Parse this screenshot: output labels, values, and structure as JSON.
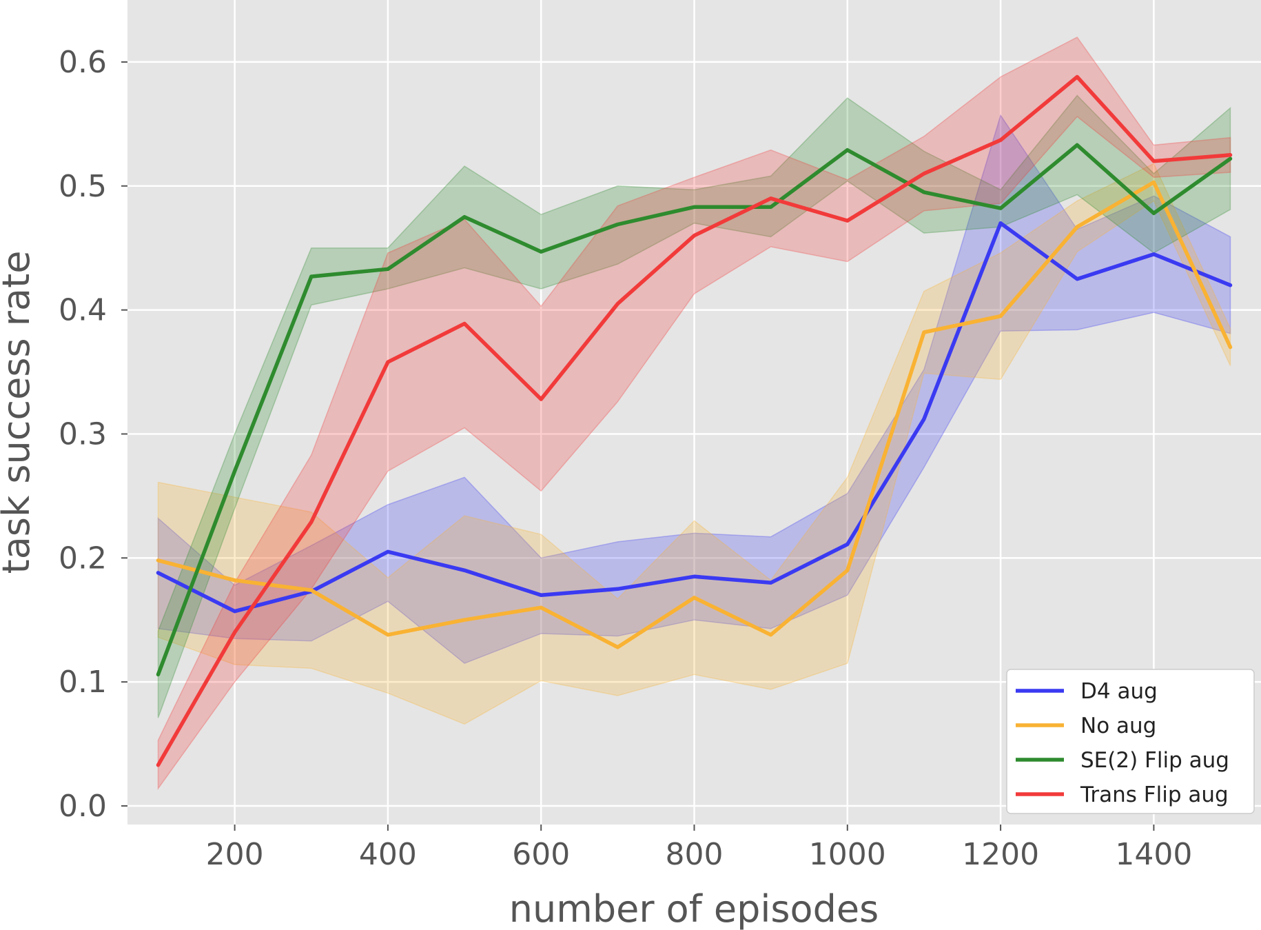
{
  "chart_data": {
    "type": "line",
    "title": "",
    "xlabel": "number of episodes",
    "ylabel": "task success rate",
    "xlim": [
      60,
      1540
    ],
    "ylim": [
      -0.015,
      0.65
    ],
    "xticks": [
      200,
      400,
      600,
      800,
      1000,
      1200,
      1400
    ],
    "yticks": [
      0.0,
      0.1,
      0.2,
      0.3,
      0.4,
      0.5,
      0.6
    ],
    "grid": true,
    "legend_position": "bottom-right",
    "x": [
      100,
      200,
      300,
      400,
      500,
      600,
      700,
      800,
      900,
      1000,
      1100,
      1200,
      1300,
      1400,
      1500
    ],
    "series": [
      {
        "name": "D4 aug",
        "color": "#3a3af2",
        "values": [
          0.188,
          0.157,
          0.173,
          0.205,
          0.19,
          0.17,
          0.175,
          0.185,
          0.18,
          0.211,
          0.312,
          0.47,
          0.425,
          0.445,
          0.42
        ],
        "lower": [
          0.143,
          0.135,
          0.133,
          0.165,
          0.115,
          0.139,
          0.137,
          0.15,
          0.143,
          0.17,
          0.273,
          0.383,
          0.384,
          0.398,
          0.381
        ],
        "upper": [
          0.232,
          0.178,
          0.21,
          0.243,
          0.265,
          0.2,
          0.213,
          0.22,
          0.217,
          0.252,
          0.352,
          0.557,
          0.465,
          0.492,
          0.459
        ]
      },
      {
        "name": "No aug",
        "color": "#f9b233",
        "values": [
          0.198,
          0.182,
          0.174,
          0.138,
          0.15,
          0.16,
          0.128,
          0.168,
          0.138,
          0.19,
          0.382,
          0.395,
          0.467,
          0.503,
          0.37
        ],
        "lower": [
          0.136,
          0.114,
          0.111,
          0.091,
          0.066,
          0.101,
          0.089,
          0.106,
          0.094,
          0.115,
          0.349,
          0.344,
          0.447,
          0.488,
          0.355
        ],
        "upper": [
          0.261,
          0.249,
          0.237,
          0.184,
          0.234,
          0.219,
          0.167,
          0.23,
          0.182,
          0.265,
          0.415,
          0.446,
          0.488,
          0.518,
          0.385
        ]
      },
      {
        "name": "SE(2) Flip aug",
        "color": "#2e8b2e",
        "values": [
          0.106,
          0.27,
          0.427,
          0.433,
          0.475,
          0.447,
          0.469,
          0.483,
          0.483,
          0.529,
          0.495,
          0.482,
          0.533,
          0.478,
          0.522
        ],
        "lower": [
          0.071,
          0.24,
          0.404,
          0.417,
          0.434,
          0.417,
          0.437,
          0.47,
          0.459,
          0.504,
          0.462,
          0.467,
          0.493,
          0.446,
          0.481
        ],
        "upper": [
          0.141,
          0.3,
          0.45,
          0.45,
          0.516,
          0.477,
          0.5,
          0.497,
          0.508,
          0.571,
          0.528,
          0.497,
          0.573,
          0.51,
          0.563
        ]
      },
      {
        "name": "Trans Flip aug",
        "color": "#f23a3a",
        "values": [
          0.033,
          0.14,
          0.229,
          0.358,
          0.389,
          0.328,
          0.405,
          0.46,
          0.49,
          0.472,
          0.51,
          0.537,
          0.588,
          0.52,
          0.525
        ],
        "lower": [
          0.014,
          0.1,
          0.175,
          0.27,
          0.305,
          0.254,
          0.326,
          0.413,
          0.451,
          0.439,
          0.48,
          0.486,
          0.556,
          0.507,
          0.511
        ],
        "upper": [
          0.053,
          0.18,
          0.283,
          0.446,
          0.473,
          0.403,
          0.484,
          0.507,
          0.529,
          0.505,
          0.54,
          0.588,
          0.62,
          0.533,
          0.539
        ]
      }
    ]
  }
}
